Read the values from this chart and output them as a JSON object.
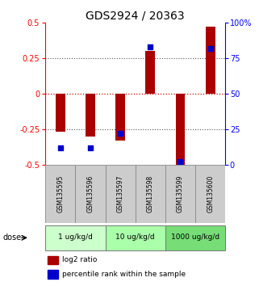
{
  "title": "GDS2924 / 20363",
  "samples": [
    "GSM135595",
    "GSM135596",
    "GSM135597",
    "GSM135598",
    "GSM135599",
    "GSM135600"
  ],
  "log2_ratio": [
    -0.27,
    -0.3,
    -0.33,
    0.3,
    -0.5,
    0.47
  ],
  "percentile_rank": [
    12,
    12,
    22,
    83,
    2,
    82
  ],
  "ylim_left": [
    -0.5,
    0.5
  ],
  "ylim_right": [
    0,
    100
  ],
  "yticks_left": [
    -0.5,
    -0.25,
    0,
    0.25,
    0.5
  ],
  "yticks_right": [
    0,
    25,
    50,
    75,
    100
  ],
  "hlines": [
    0.25,
    0.0,
    -0.25
  ],
  "bar_color": "#aa0000",
  "dot_color": "#0000cc",
  "dose_groups": [
    {
      "label": "1 ug/kg/d",
      "samples": [
        0,
        1
      ],
      "color": "#ccffcc"
    },
    {
      "label": "10 ug/kg/d",
      "samples": [
        2,
        3
      ],
      "color": "#aaffaa"
    },
    {
      "label": "1000 ug/kg/d",
      "samples": [
        4,
        5
      ],
      "color": "#77dd77"
    }
  ],
  "dose_label": "dose",
  "legend_red": "log2 ratio",
  "legend_blue": "percentile rank within the sample",
  "title_fontsize": 10,
  "tick_fontsize": 7,
  "sample_fontsize": 5.5,
  "dose_fontsize": 6.5,
  "legend_fontsize": 6.5,
  "background_color": "#ffffff",
  "plot_bg": "#ffffff",
  "zero_line_color": "#cc0000",
  "dot_line_color": "#555555",
  "sample_box_color": "#cccccc",
  "sample_box_edge": "#888888"
}
